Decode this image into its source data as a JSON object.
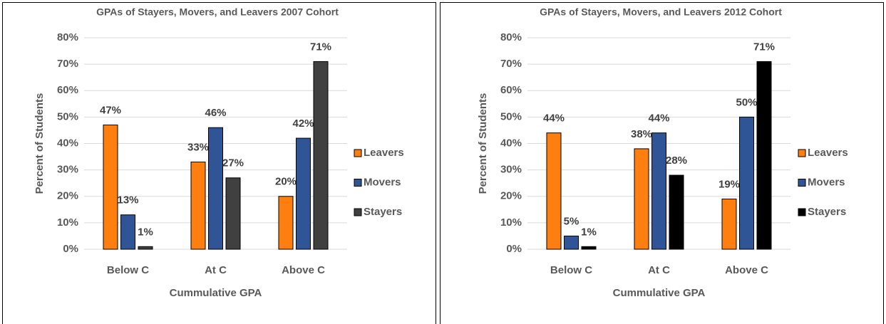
{
  "chart_data": [
    {
      "type": "bar",
      "title": "GPAs of Stayers, Movers, and Leavers  2007 Cohort",
      "x_label": "Cummulative GPA",
      "y_label": "Percent of Students",
      "categories": [
        "Below C",
        "At C",
        "Above C"
      ],
      "series": [
        {
          "name": "Leavers",
          "color": "#fe7f0f",
          "values": [
            47,
            33,
            20
          ],
          "value_labels": [
            "47%",
            "33%",
            "20%"
          ]
        },
        {
          "name": "Movers",
          "color": "#2f5597",
          "values": [
            13,
            46,
            42
          ],
          "value_labels": [
            "13%",
            "46%",
            "42%"
          ]
        },
        {
          "name": "Stayers",
          "color": "#404040",
          "values": [
            1,
            27,
            71
          ],
          "value_labels": [
            "1%",
            "27%",
            "71%"
          ]
        }
      ],
      "ylim": [
        0,
        80
      ],
      "yticks": [
        {
          "value": 0,
          "label": "0%"
        },
        {
          "value": 10,
          "label": "10%"
        },
        {
          "value": 20,
          "label": "20%"
        },
        {
          "value": 30,
          "label": "30%"
        },
        {
          "value": 40,
          "label": "40%"
        },
        {
          "value": 50,
          "label": "50%"
        },
        {
          "value": 60,
          "label": "60%"
        },
        {
          "value": 70,
          "label": "70%"
        },
        {
          "value": 80,
          "label": "80%"
        }
      ],
      "grid": true,
      "legend": "right"
    },
    {
      "type": "bar",
      "title": "GPAs of Stayers, Movers, and Leavers 2012 Cohort",
      "x_label": "Cummulative GPA",
      "y_label": "Percent of Students",
      "categories": [
        "Below C",
        "At C",
        "Above C"
      ],
      "series": [
        {
          "name": "Leavers",
          "color": "#fe7f0f",
          "values": [
            44,
            38,
            19
          ],
          "value_labels": [
            "44%",
            "38%",
            "19%"
          ]
        },
        {
          "name": "Movers",
          "color": "#2f5597",
          "values": [
            5,
            44,
            50
          ],
          "value_labels": [
            "5%",
            "44%",
            "50%"
          ]
        },
        {
          "name": "Stayers",
          "color": "#000000",
          "values": [
            1,
            28,
            71
          ],
          "value_labels": [
            "1%",
            "28%",
            "71%"
          ]
        }
      ],
      "ylim": [
        0,
        80
      ],
      "yticks": [
        {
          "value": 0,
          "label": "0%"
        },
        {
          "value": 10,
          "label": "10%"
        },
        {
          "value": 20,
          "label": "20%"
        },
        {
          "value": 30,
          "label": "30%"
        },
        {
          "value": 40,
          "label": "40%"
        },
        {
          "value": 50,
          "label": "50%"
        },
        {
          "value": 60,
          "label": "60%"
        },
        {
          "value": 70,
          "label": "70%"
        },
        {
          "value": 80,
          "label": "80%"
        }
      ],
      "grid": true,
      "legend": "right"
    }
  ]
}
